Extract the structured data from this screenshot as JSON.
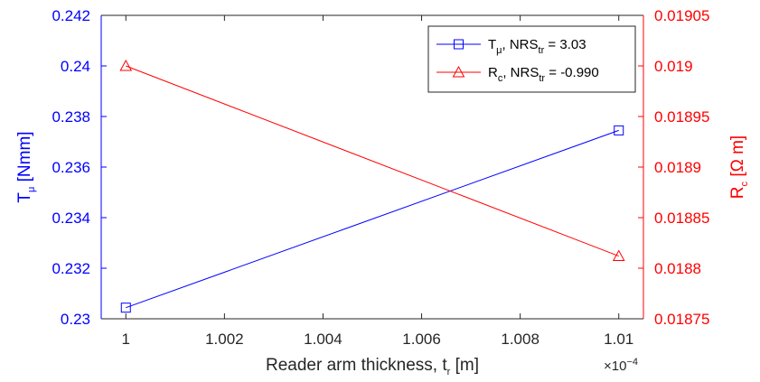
{
  "chart_data": {
    "type": "line",
    "x": [
      1.0,
      1.01
    ],
    "x_multiplier": "×10−4",
    "x_multiplier_base": "×10",
    "x_multiplier_exp": "−4",
    "xlim": [
      0.9995,
      1.0105
    ],
    "xticks": [
      1,
      1.002,
      1.004,
      1.006,
      1.008,
      1.01
    ],
    "xtick_labels": [
      "1",
      "1.002",
      "1.004",
      "1.006",
      "1.008",
      "1.01"
    ],
    "xlabel": {
      "main": "Reader arm thickness, t",
      "sub": "r",
      "unit": " [m]"
    },
    "y_left": {
      "lim": [
        0.23,
        0.242
      ],
      "ticks": [
        0.23,
        0.232,
        0.234,
        0.236,
        0.238,
        0.24,
        0.242
      ],
      "tick_labels": [
        "0.23",
        "0.232",
        "0.234",
        "0.236",
        "0.238",
        "0.24",
        "0.242"
      ],
      "label": {
        "main": "T",
        "sub": "μ",
        "unit": " [Nmm]"
      },
      "color": "#0000ff"
    },
    "y_right": {
      "lim": [
        0.01875,
        0.01905
      ],
      "ticks": [
        0.01875,
        0.0188,
        0.01885,
        0.0189,
        0.01895,
        0.019,
        0.01905
      ],
      "tick_labels": [
        "0.01875",
        "0.0188",
        "0.01885",
        "0.0189",
        "0.01895",
        "0.019",
        "0.01905"
      ],
      "label": {
        "main": "R",
        "sub": "c",
        "unit": " [Ω m]"
      },
      "color": "#ff0000"
    },
    "series": [
      {
        "axis": "left",
        "marker": "square",
        "color": "#0000ff",
        "values": [
          0.23044,
          0.23745
        ],
        "legend": {
          "main": "T",
          "sub1": "μ",
          "mid": ", NRS",
          "sub2": "tr",
          "tail": " = 3.03"
        }
      },
      {
        "axis": "right",
        "marker": "triangle",
        "color": "#ff0000",
        "values": [
          0.019,
          0.018812
        ],
        "legend": {
          "main": "R",
          "sub1": "c",
          "mid": ", NRS",
          "sub2": "tr",
          "tail": " = -0.990"
        }
      }
    ],
    "legend_position": "top-right",
    "grid": false
  }
}
